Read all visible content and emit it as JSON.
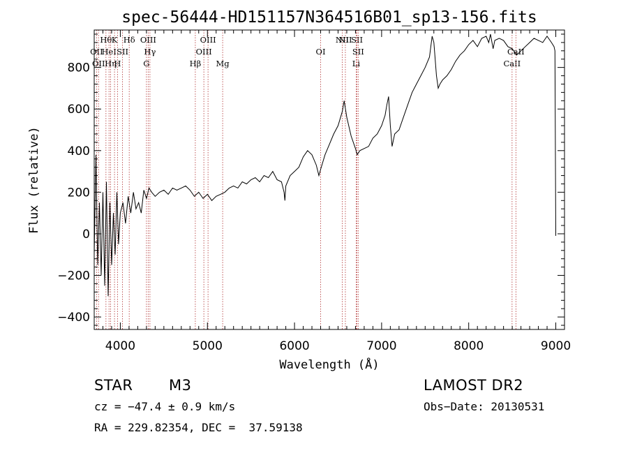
{
  "chart_data": {
    "type": "line",
    "title": "spec-56444-HD151157N364516B01_sp13-156.fits",
    "xlabel": "Wavelength (Å)",
    "ylabel": "Flux (relative)",
    "xlim": [
      3700,
      9100
    ],
    "ylim": [
      -460,
      980
    ],
    "xticks": [
      4000,
      5000,
      6000,
      7000,
      8000,
      9000
    ],
    "yticks": [
      -400,
      -200,
      0,
      200,
      400,
      600,
      800
    ],
    "grid": false,
    "series": [
      {
        "color": "#000000",
        "x": [
          3700,
          3720,
          3740,
          3760,
          3780,
          3800,
          3820,
          3840,
          3860,
          3880,
          3900,
          3920,
          3940,
          3960,
          3980,
          4000,
          4030,
          4060,
          4090,
          4120,
          4150,
          4180,
          4210,
          4240,
          4270,
          4300,
          4330,
          4360,
          4400,
          4450,
          4500,
          4550,
          4600,
          4650,
          4700,
          4750,
          4800,
          4850,
          4900,
          4950,
          5000,
          5050,
          5100,
          5150,
          5200,
          5250,
          5300,
          5350,
          5400,
          5450,
          5500,
          5550,
          5600,
          5650,
          5700,
          5750,
          5800,
          5850,
          5880,
          5890,
          5900,
          5950,
          6000,
          6050,
          6100,
          6150,
          6200,
          6250,
          6280,
          6300,
          6350,
          6400,
          6450,
          6500,
          6550,
          6570,
          6600,
          6650,
          6700,
          6720,
          6750,
          6800,
          6850,
          6900,
          6950,
          7000,
          7040,
          7060,
          7080,
          7100,
          7120,
          7150,
          7200,
          7250,
          7300,
          7350,
          7400,
          7450,
          7500,
          7550,
          7580,
          7600,
          7630,
          7650,
          7670,
          7700,
          7750,
          7800,
          7850,
          7900,
          7950,
          8000,
          8050,
          8100,
          8150,
          8200,
          8230,
          8250,
          8280,
          8300,
          8350,
          8400,
          8450,
          8500,
          8550,
          8600,
          8650,
          8700,
          8750,
          8800,
          8850,
          8900,
          8950,
          8980,
          8990,
          9000
        ],
        "y": [
          -100,
          380,
          -150,
          150,
          -200,
          200,
          -250,
          250,
          -300,
          150,
          -150,
          100,
          -100,
          200,
          -50,
          100,
          150,
          50,
          180,
          100,
          200,
          120,
          150,
          100,
          210,
          170,
          220,
          200,
          180,
          200,
          210,
          190,
          220,
          210,
          220,
          230,
          210,
          180,
          200,
          170,
          190,
          160,
          180,
          190,
          200,
          220,
          230,
          220,
          250,
          240,
          260,
          270,
          250,
          280,
          270,
          300,
          260,
          250,
          200,
          160,
          230,
          280,
          300,
          320,
          370,
          400,
          380,
          330,
          280,
          310,
          380,
          430,
          480,
          520,
          590,
          640,
          560,
          470,
          410,
          380,
          400,
          410,
          420,
          460,
          480,
          520,
          570,
          620,
          660,
          520,
          420,
          480,
          500,
          560,
          620,
          680,
          720,
          760,
          800,
          850,
          950,
          920,
          760,
          700,
          720,
          740,
          760,
          790,
          830,
          860,
          880,
          910,
          930,
          900,
          940,
          950,
          920,
          960,
          890,
          930,
          940,
          930,
          900,
          890,
          860,
          880,
          900,
          920,
          940,
          930,
          920,
          950,
          920,
          900,
          880,
          -10
        ]
      }
    ],
    "lines": [
      {
        "wavelength": 3727,
        "label": "OII",
        "row": 1
      },
      {
        "wavelength": 3750,
        "label": "OII",
        "row": 2
      },
      {
        "wavelength": 3835,
        "label": "Hθ",
        "row": 0
      },
      {
        "wavelength": 3870,
        "label": "HeI",
        "row": 1
      },
      {
        "wavelength": 3889,
        "label": "Hη",
        "row": 2
      },
      {
        "wavelength": 3933,
        "label": "K",
        "row": 0
      },
      {
        "wavelength": 3968,
        "label": "H",
        "row": 2
      },
      {
        "wavelength": 4025,
        "label": "SII",
        "row": 1
      },
      {
        "wavelength": 4102,
        "label": "Hδ",
        "row": 0
      },
      {
        "wavelength": 4300,
        "label": "G",
        "row": 2
      },
      {
        "wavelength": 4320,
        "label": "OIII",
        "row": 0
      },
      {
        "wavelength": 4340,
        "label": "Hγ",
        "row": 1
      },
      {
        "wavelength": 4861,
        "label": "Hβ",
        "row": 2
      },
      {
        "wavelength": 4959,
        "label": "OIII",
        "row": 1
      },
      {
        "wavelength": 5007,
        "label": "OIII",
        "row": 0
      },
      {
        "wavelength": 5175,
        "label": "Mg",
        "row": 2
      },
      {
        "wavelength": 6300,
        "label": "OI",
        "row": 1
      },
      {
        "wavelength": 6548,
        "label": "NII",
        "row": 0
      },
      {
        "wavelength": 6584,
        "label": "NII",
        "row": 0
      },
      {
        "wavelength": 6708,
        "label": "Li",
        "row": 2
      },
      {
        "wavelength": 6717,
        "label": "SII",
        "row": 0
      },
      {
        "wavelength": 6731,
        "label": "SII",
        "row": 1
      },
      {
        "wavelength": 8498,
        "label": "CaII",
        "row": 2
      },
      {
        "wavelength": 8542,
        "label": "CaII",
        "row": 1
      }
    ]
  },
  "info": {
    "object_class": "STAR",
    "subclass": "M3",
    "survey": "LAMOST DR2",
    "cz": "cz = −47.4 ± 0.9 km/s",
    "obs_date": "Obs−Date: 20130531",
    "coords": "RA = 229.82354, DEC =  37.59138"
  }
}
